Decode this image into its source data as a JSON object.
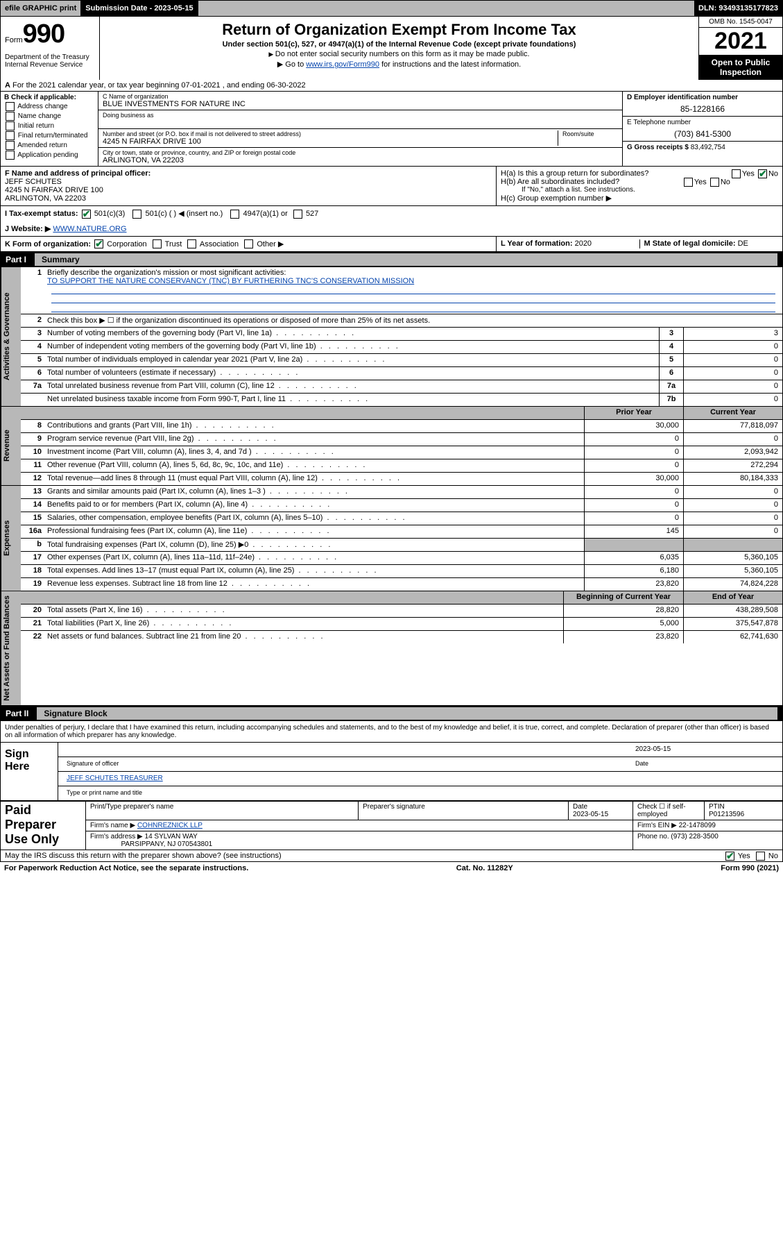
{
  "topbar": {
    "efile": "efile GRAPHIC print",
    "submission_label": "Submission Date - 2023-05-15",
    "dln": "DLN: 93493135177823"
  },
  "header": {
    "form_prefix": "Form",
    "form_number": "990",
    "dept": "Department of the Treasury Internal Revenue Service",
    "title": "Return of Organization Exempt From Income Tax",
    "sub": "Under section 501(c), 527, or 4947(a)(1) of the Internal Revenue Code (except private foundations)",
    "note1": "Do not enter social security numbers on this form as it may be made public.",
    "note2_pre": "Go to ",
    "note2_link": "www.irs.gov/Form990",
    "note2_post": " for instructions and the latest information.",
    "omb": "OMB No. 1545-0047",
    "year": "2021",
    "open": "Open to Public Inspection"
  },
  "line_a": "For the 2021 calendar year, or tax year beginning 07-01-2021   , and ending 06-30-2022",
  "box_b": {
    "header": "B Check if applicable:",
    "opts": [
      "Address change",
      "Name change",
      "Initial return",
      "Final return/terminated",
      "Amended return",
      "Application pending"
    ]
  },
  "box_c": {
    "name_label": "C Name of organization",
    "name": "BLUE INVESTMENTS FOR NATURE INC",
    "dba_label": "Doing business as",
    "addr_label": "Number and street (or P.O. box if mail is not delivered to street address)",
    "room_label": "Room/suite",
    "addr": "4245 N FAIRFAX DRIVE 100",
    "city_label": "City or town, state or province, country, and ZIP or foreign postal code",
    "city": "ARLINGTON, VA  22203"
  },
  "box_d": {
    "label": "D Employer identification number",
    "val": "85-1228166"
  },
  "box_e": {
    "label": "E Telephone number",
    "val": "(703) 841-5300"
  },
  "box_g": {
    "label": "G Gross receipts $",
    "val": "83,492,754"
  },
  "box_f": {
    "label": "F  Name and address of principal officer:",
    "name": "JEFF SCHUTES",
    "addr1": "4245 N FAIRFAX DRIVE 100",
    "addr2": "ARLINGTON, VA  22203"
  },
  "box_h": {
    "a": "H(a)  Is this a group return for subordinates?",
    "a_yes": "Yes",
    "a_no": "No",
    "b": "H(b)  Are all subordinates included?",
    "b_note": "If \"No,\" attach a list. See instructions.",
    "c": "H(c)  Group exemption number ▶"
  },
  "line_i": {
    "label": "I   Tax-exempt status:",
    "o1": "501(c)(3)",
    "o2": "501(c) (   ) ◀ (insert no.)",
    "o3": "4947(a)(1) or",
    "o4": "527"
  },
  "line_j": {
    "label": "J   Website: ▶",
    "val": "WWW.NATURE.ORG"
  },
  "line_k": {
    "label": "K Form of organization:",
    "o1": "Corporation",
    "o2": "Trust",
    "o3": "Association",
    "o4": "Other ▶"
  },
  "line_l": {
    "label": "L Year of formation:",
    "val": "2020"
  },
  "line_m": {
    "label": "M State of legal domicile:",
    "val": "DE"
  },
  "part1": {
    "label": "Part I",
    "title": "Summary"
  },
  "summary": {
    "q1_label": "Briefly describe the organization's mission or most significant activities:",
    "q1_val": "TO SUPPORT THE NATURE CONSERVANCY (TNC) BY FURTHERING TNC'S CONSERVATION MISSION",
    "q2": "Check this box ▶ ☐  if the organization discontinued its operations or disposed of more than 25% of its net assets.",
    "rows_gov": [
      {
        "n": "3",
        "d": "Number of voting members of the governing body (Part VI, line 1a)",
        "box": "3",
        "v": "3"
      },
      {
        "n": "4",
        "d": "Number of independent voting members of the governing body (Part VI, line 1b)",
        "box": "4",
        "v": "0"
      },
      {
        "n": "5",
        "d": "Total number of individuals employed in calendar year 2021 (Part V, line 2a)",
        "box": "5",
        "v": "0"
      },
      {
        "n": "6",
        "d": "Total number of volunteers (estimate if necessary)",
        "box": "6",
        "v": "0"
      },
      {
        "n": "7a",
        "d": "Total unrelated business revenue from Part VIII, column (C), line 12",
        "box": "7a",
        "v": "0"
      },
      {
        "n": "",
        "d": "Net unrelated business taxable income from Form 990-T, Part I, line 11",
        "box": "7b",
        "v": "0"
      }
    ],
    "col_hdr_prior": "Prior Year",
    "col_hdr_curr": "Current Year",
    "rows_rev": [
      {
        "n": "8",
        "d": "Contributions and grants (Part VIII, line 1h)",
        "p": "30,000",
        "c": "77,818,097"
      },
      {
        "n": "9",
        "d": "Program service revenue (Part VIII, line 2g)",
        "p": "0",
        "c": "0"
      },
      {
        "n": "10",
        "d": "Investment income (Part VIII, column (A), lines 3, 4, and 7d )",
        "p": "0",
        "c": "2,093,942"
      },
      {
        "n": "11",
        "d": "Other revenue (Part VIII, column (A), lines 5, 6d, 8c, 9c, 10c, and 11e)",
        "p": "0",
        "c": "272,294"
      },
      {
        "n": "12",
        "d": "Total revenue—add lines 8 through 11 (must equal Part VIII, column (A), line 12)",
        "p": "30,000",
        "c": "80,184,333"
      }
    ],
    "rows_exp": [
      {
        "n": "13",
        "d": "Grants and similar amounts paid (Part IX, column (A), lines 1–3 )",
        "p": "0",
        "c": "0"
      },
      {
        "n": "14",
        "d": "Benefits paid to or for members (Part IX, column (A), line 4)",
        "p": "0",
        "c": "0"
      },
      {
        "n": "15",
        "d": "Salaries, other compensation, employee benefits (Part IX, column (A), lines 5–10)",
        "p": "0",
        "c": "0"
      },
      {
        "n": "16a",
        "d": "Professional fundraising fees (Part IX, column (A), line 11e)",
        "p": "145",
        "c": "0"
      },
      {
        "n": "b",
        "d": "Total fundraising expenses (Part IX, column (D), line 25) ▶0",
        "p": "",
        "c": "",
        "shaded": true
      },
      {
        "n": "17",
        "d": "Other expenses (Part IX, column (A), lines 11a–11d, 11f–24e)",
        "p": "6,035",
        "c": "5,360,105"
      },
      {
        "n": "18",
        "d": "Total expenses. Add lines 13–17 (must equal Part IX, column (A), line 25)",
        "p": "6,180",
        "c": "5,360,105"
      },
      {
        "n": "19",
        "d": "Revenue less expenses. Subtract line 18 from line 12",
        "p": "23,820",
        "c": "74,824,228"
      }
    ],
    "col_hdr_beg": "Beginning of Current Year",
    "col_hdr_end": "End of Year",
    "rows_net": [
      {
        "n": "20",
        "d": "Total assets (Part X, line 16)",
        "p": "28,820",
        "c": "438,289,508"
      },
      {
        "n": "21",
        "d": "Total liabilities (Part X, line 26)",
        "p": "5,000",
        "c": "375,547,878"
      },
      {
        "n": "22",
        "d": "Net assets or fund balances. Subtract line 21 from line 20",
        "p": "23,820",
        "c": "62,741,630"
      }
    ],
    "vtabs": [
      "Activities & Governance",
      "Revenue",
      "Expenses",
      "Net Assets or Fund Balances"
    ]
  },
  "part2": {
    "label": "Part II",
    "title": "Signature Block"
  },
  "sig": {
    "declaration": "Under penalties of perjury, I declare that I have examined this return, including accompanying schedules and statements, and to the best of my knowledge and belief, it is true, correct, and complete. Declaration of preparer (other than officer) is based on all information of which preparer has any knowledge.",
    "sign_here": "Sign Here",
    "sig_officer": "Signature of officer",
    "date_label": "Date",
    "date_val": "2023-05-15",
    "name_title": "JEFF SCHUTES  TREASURER",
    "name_title_label": "Type or print name and title"
  },
  "prep": {
    "label": "Paid Preparer Use Only",
    "h1": "Print/Type preparer's name",
    "h2": "Preparer's signature",
    "h3": "Date",
    "h3v": "2023-05-15",
    "h4": "Check ☐ if self-employed",
    "h5": "PTIN",
    "h5v": "P01213596",
    "firm_name_l": "Firm's name    ▶",
    "firm_name": "COHNREZNICK LLP",
    "firm_ein_l": "Firm's EIN ▶",
    "firm_ein": "22-1478099",
    "firm_addr_l": "Firm's address ▶",
    "firm_addr": "14 SYLVAN WAY",
    "firm_addr2": "PARSIPPANY, NJ  070543801",
    "phone_l": "Phone no.",
    "phone": "(973) 228-3500"
  },
  "may_discuss": "May the IRS discuss this return with the preparer shown above? (see instructions)",
  "footer": {
    "left": "For Paperwork Reduction Act Notice, see the separate instructions.",
    "mid": "Cat. No. 11282Y",
    "right": "Form 990 (2021)"
  }
}
